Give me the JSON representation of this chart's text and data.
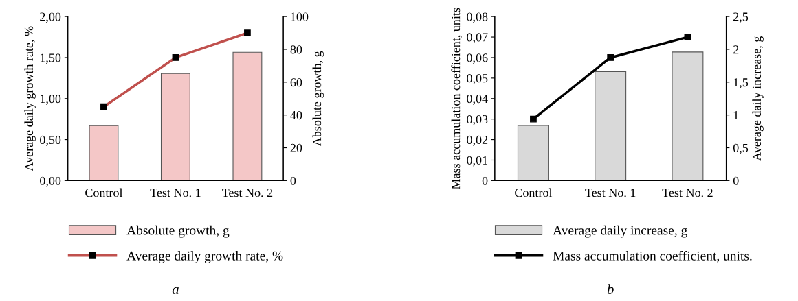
{
  "chart_data": [
    {
      "type": "bar",
      "categories": [
        "Control",
        "Test No. 1",
        "Test No. 2"
      ],
      "ylabel": "Average daily growth rate, %",
      "y2label": "Absolute growth, g",
      "ylim": [
        0,
        2
      ],
      "yticks": [
        {
          "value": 0,
          "label": "0,00"
        },
        {
          "value": 0.5,
          "label": "0,50"
        },
        {
          "value": 1,
          "label": "1,00"
        },
        {
          "value": 1.5,
          "label": "1,50"
        },
        {
          "value": 2,
          "label": "2,00"
        }
      ],
      "y2lim": [
        0,
        100
      ],
      "y2ticks": [
        0,
        20,
        40,
        60,
        80,
        100
      ],
      "legend": "bottom",
      "marker": "square",
      "grid": false,
      "annotations": [
        "a"
      ],
      "series": [
        {
          "name": "Absolute growth, g",
          "axis": "y2",
          "color": "#f4c7c7",
          "values": [
            33.5,
            65.3,
            78.2
          ]
        },
        {
          "name": "Average daily growth rate, %",
          "type": "line",
          "color": "#c0504d",
          "values": [
            0.9,
            1.5,
            1.8
          ]
        }
      ]
    },
    {
      "type": "bar",
      "categories": [
        "Control",
        "Test No. 1",
        "Test No. 2"
      ],
      "ylabel": "Mass accumulation coefficient, units",
      "y2label": "Average daily increase, g",
      "ylim": [
        0,
        0.08
      ],
      "yticks": [
        {
          "value": 0,
          "label": "0"
        },
        {
          "value": 0.01,
          "label": "0,01"
        },
        {
          "value": 0.02,
          "label": "0,02"
        },
        {
          "value": 0.03,
          "label": "0,03"
        },
        {
          "value": 0.04,
          "label": "0,04"
        },
        {
          "value": 0.05,
          "label": "0,05"
        },
        {
          "value": 0.06,
          "label": "0,06"
        },
        {
          "value": 0.07,
          "label": "0,07"
        },
        {
          "value": 0.08,
          "label": "0,08"
        }
      ],
      "y2lim": [
        0,
        2.5
      ],
      "y2ticks": [
        {
          "value": 0,
          "label": "0"
        },
        {
          "value": 0.5,
          "label": "0,5"
        },
        {
          "value": 1,
          "label": "1"
        },
        {
          "value": 1.5,
          "label": "1,5"
        },
        {
          "value": 2,
          "label": "2"
        },
        {
          "value": 2.5,
          "label": "2,5"
        }
      ],
      "legend": "bottom",
      "marker": "square",
      "grid": false,
      "annotations": [
        "b"
      ],
      "series": [
        {
          "name": "Average daily increase, g",
          "axis": "y2",
          "color": "#d9d9d9",
          "values": [
            0.84,
            1.66,
            1.96
          ]
        },
        {
          "name": "Mass accumulation coefficient, units.",
          "type": "line",
          "color": "#000000",
          "values": [
            0.03,
            0.06,
            0.07
          ]
        }
      ]
    }
  ]
}
